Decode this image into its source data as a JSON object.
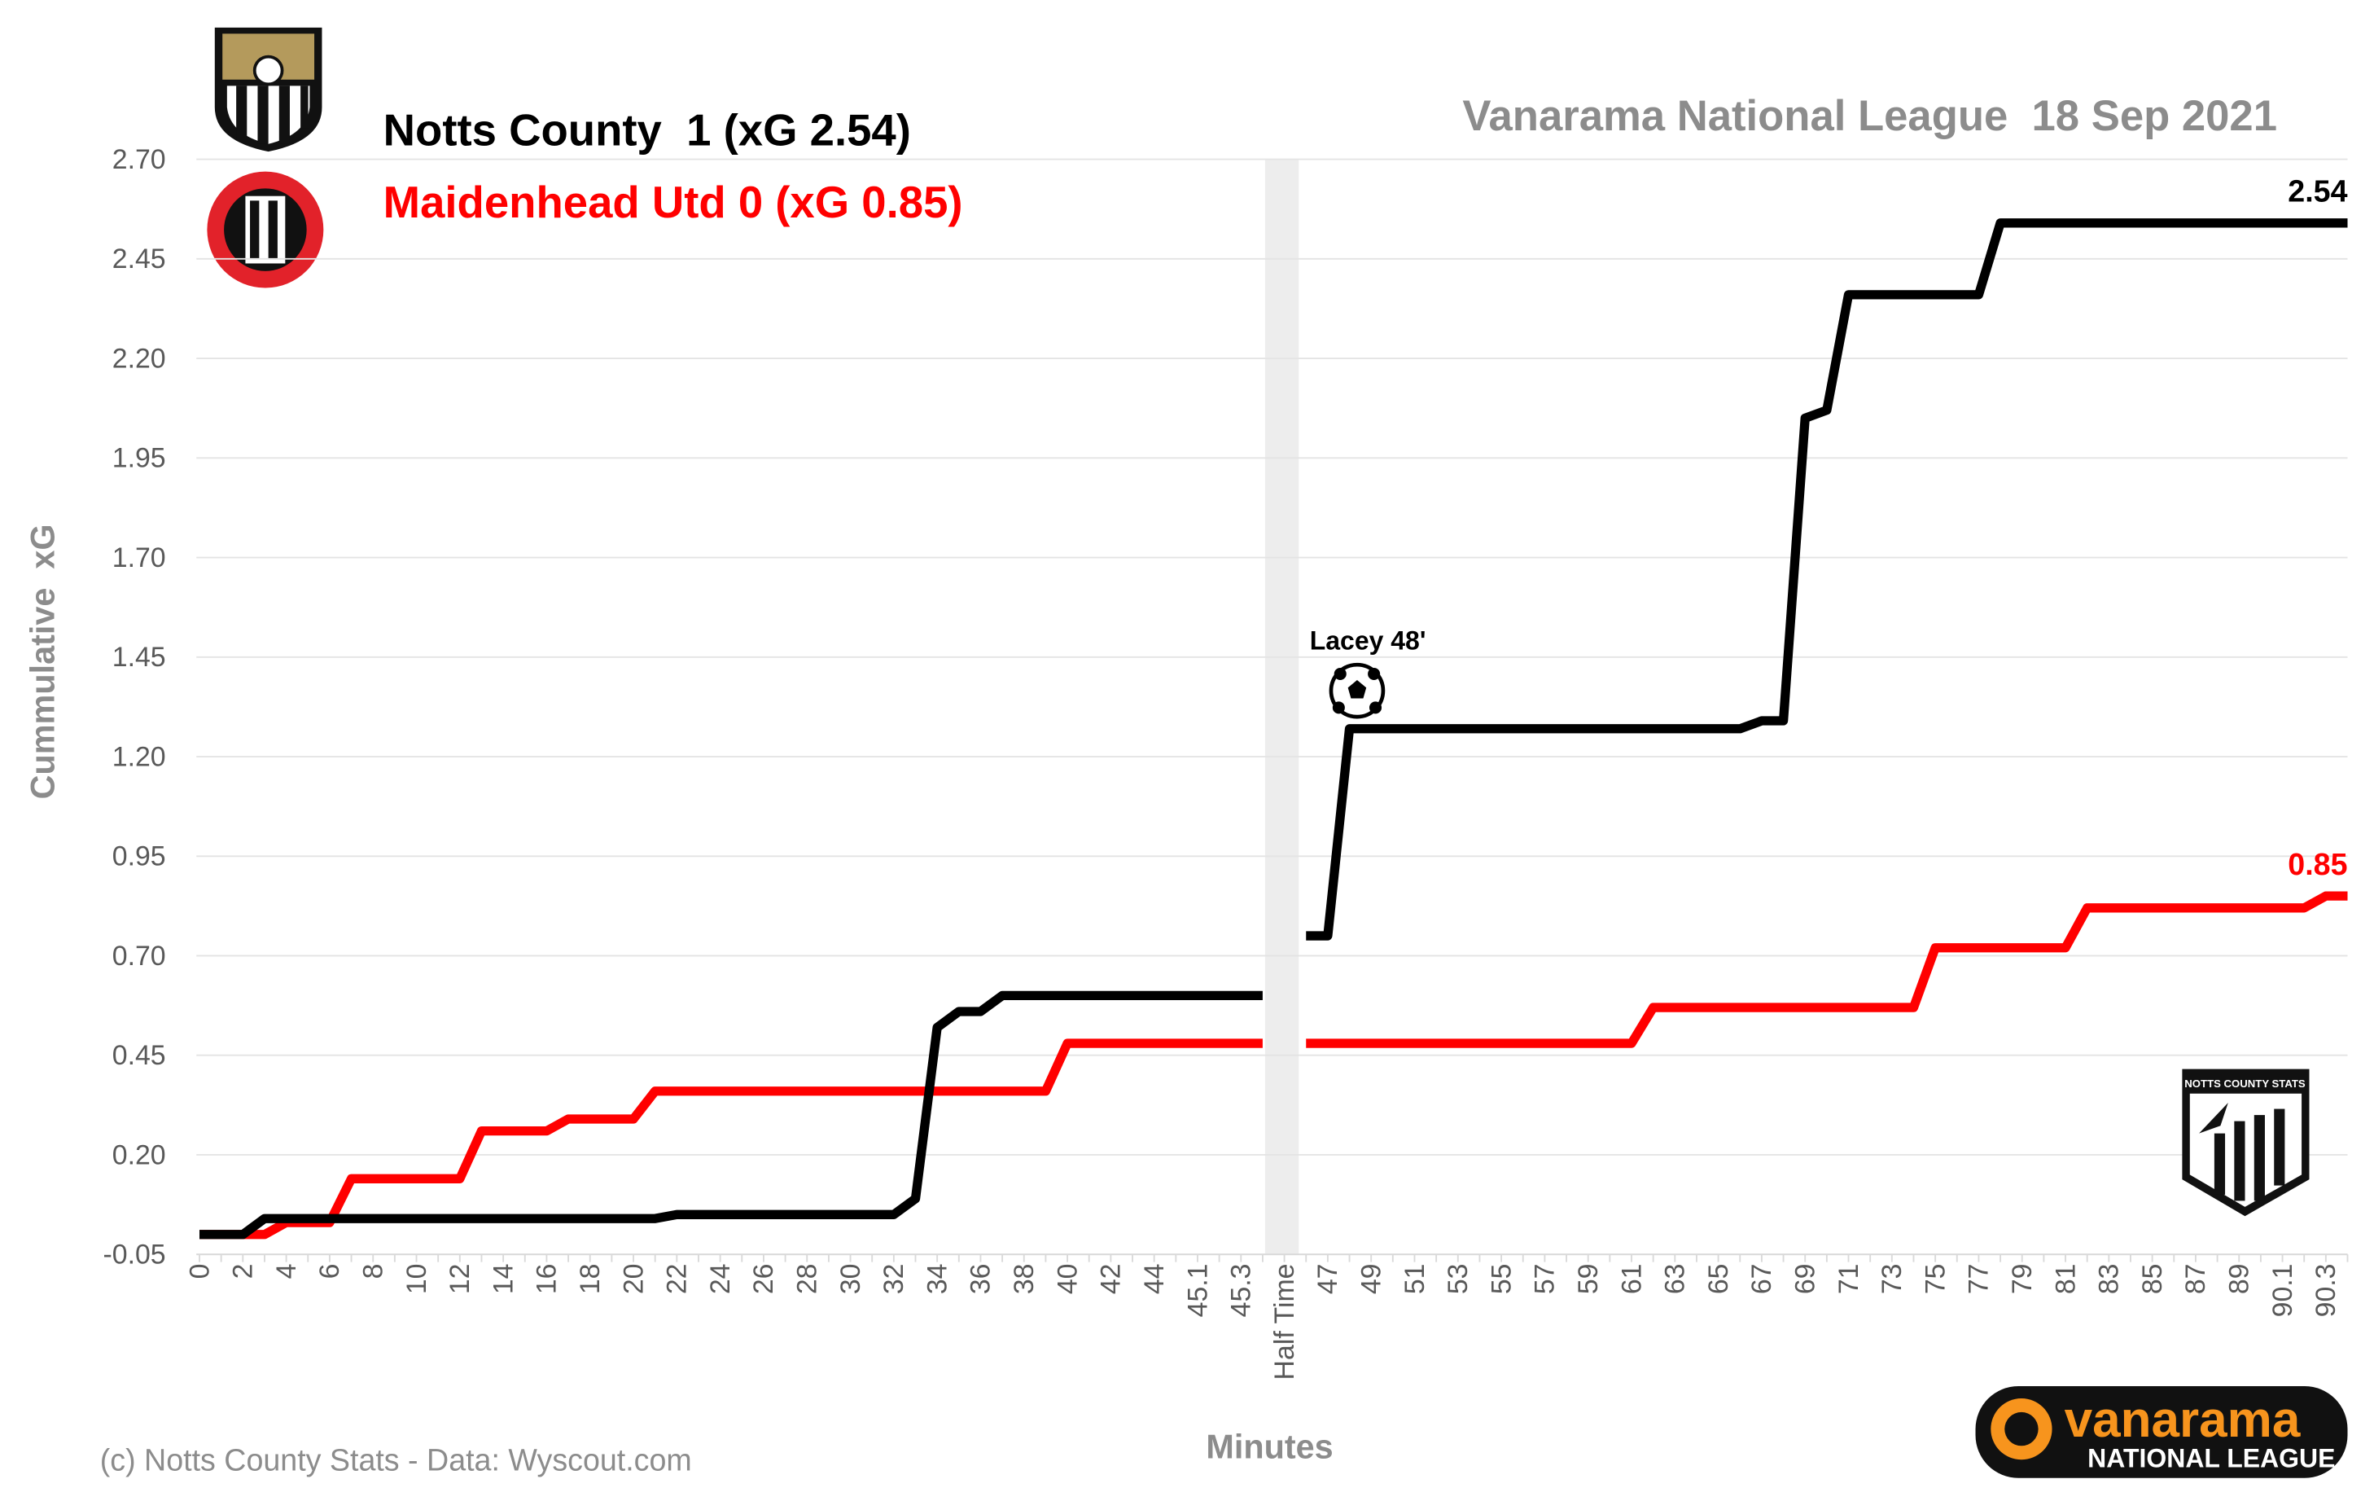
{
  "chart_data": {
    "type": "line",
    "title": "Vanarama National League  18 Sep 2021",
    "x_label": "Minutes",
    "y_label": "Cummulative  xG",
    "credit": "(c) Notts County Stats - Data: Wyscout.com",
    "annotations": [
      {
        "text": "Lacey 48'"
      }
    ],
    "logos": {
      "stats": "NOTTS COUNTY STATS",
      "sponsor": [
        "vanarama",
        "NATIONAL LEAGUE"
      ]
    },
    "categories": [
      "0",
      null,
      "2",
      null,
      "4",
      null,
      "6",
      null,
      "8",
      null,
      "10",
      null,
      "12",
      null,
      "14",
      null,
      "16",
      null,
      "18",
      null,
      "20",
      null,
      "22",
      null,
      "24",
      null,
      "26",
      null,
      "28",
      null,
      "30",
      null,
      "32",
      null,
      "34",
      null,
      "36",
      null,
      "38",
      null,
      "40",
      null,
      "42",
      null,
      "44",
      null,
      "45.1",
      null,
      "45.3",
      null,
      "Half Time",
      null,
      "47",
      null,
      "49",
      null,
      "51",
      null,
      "53",
      null,
      "55",
      null,
      "57",
      null,
      "59",
      null,
      "61",
      null,
      "63",
      null,
      "65",
      null,
      "67",
      null,
      "69",
      null,
      "71",
      null,
      "73",
      null,
      "75",
      null,
      "77",
      null,
      "79",
      null,
      "81",
      null,
      "83",
      null,
      "85",
      null,
      "87",
      null,
      "89",
      null,
      "90.1",
      null,
      "90.3",
      null
    ],
    "series": [
      {
        "name": "Notts County  1 (xG 2.54)",
        "color": "#000000",
        "values": [
          0,
          0,
          0,
          0.04,
          0.04,
          0.04,
          0.04,
          0.04,
          0.04,
          0.04,
          0.04,
          0.04,
          0.04,
          0.04,
          0.04,
          0.04,
          0.04,
          0.04,
          0.04,
          0.04,
          0.04,
          0.04,
          0.05,
          0.05,
          0.05,
          0.05,
          0.05,
          0.05,
          0.05,
          0.05,
          0.05,
          0.05,
          0.05,
          0.09,
          0.52,
          0.56,
          0.56,
          0.6,
          0.6,
          0.6,
          0.6,
          0.6,
          0.6,
          0.6,
          0.6,
          0.6,
          0.6,
          0.6,
          0.6,
          0.6,
          null,
          0.75,
          0.75,
          1.27,
          1.27,
          1.27,
          1.27,
          1.27,
          1.27,
          1.27,
          1.27,
          1.27,
          1.27,
          1.27,
          1.27,
          1.27,
          1.27,
          1.27,
          1.27,
          1.27,
          1.27,
          1.27,
          1.29,
          1.29,
          2.05,
          2.07,
          2.36,
          2.36,
          2.36,
          2.36,
          2.36,
          2.36,
          2.36,
          2.54,
          2.54,
          2.54,
          2.54,
          2.54,
          2.54,
          2.54,
          2.54,
          2.54,
          2.54,
          2.54,
          2.54,
          2.54,
          2.54,
          2.54,
          2.54,
          2.54
        ]
      },
      {
        "name": "Maidenhead Utd 0 (xG 0.85)",
        "color": "#ff0000",
        "values": [
          0,
          0,
          0,
          0,
          0.03,
          0.03,
          0.03,
          0.14,
          0.14,
          0.14,
          0.14,
          0.14,
          0.14,
          0.26,
          0.26,
          0.26,
          0.26,
          0.29,
          0.29,
          0.29,
          0.29,
          0.36,
          0.36,
          0.36,
          0.36,
          0.36,
          0.36,
          0.36,
          0.36,
          0.36,
          0.36,
          0.36,
          0.36,
          0.36,
          0.36,
          0.36,
          0.36,
          0.36,
          0.36,
          0.36,
          0.48,
          0.48,
          0.48,
          0.48,
          0.48,
          0.48,
          0.48,
          0.48,
          0.48,
          0.48,
          null,
          0.48,
          0.48,
          0.48,
          0.48,
          0.48,
          0.48,
          0.48,
          0.48,
          0.48,
          0.48,
          0.48,
          0.48,
          0.48,
          0.48,
          0.48,
          0.48,
          0.57,
          0.57,
          0.57,
          0.57,
          0.57,
          0.57,
          0.57,
          0.57,
          0.57,
          0.57,
          0.57,
          0.57,
          0.57,
          0.72,
          0.72,
          0.72,
          0.72,
          0.72,
          0.72,
          0.72,
          0.82,
          0.82,
          0.82,
          0.82,
          0.82,
          0.82,
          0.82,
          0.82,
          0.82,
          0.82,
          0.82,
          0.85,
          0.85
        ]
      }
    ],
    "ylim": [
      -0.05,
      2.7
    ],
    "yticks": [
      -0.05,
      {
        "value": 0.2,
        "label": "0.20"
      },
      0.45,
      {
        "value": 0.7,
        "label": "0.70"
      },
      0.95,
      {
        "value": 1.2,
        "label": "1.20"
      },
      1.45,
      {
        "value": 1.7,
        "label": "1.70"
      },
      1.95,
      {
        "value": 2.2,
        "label": "2.20"
      },
      2.45,
      {
        "value": 2.7,
        "label": "2.70"
      }
    ],
    "grid": true
  }
}
